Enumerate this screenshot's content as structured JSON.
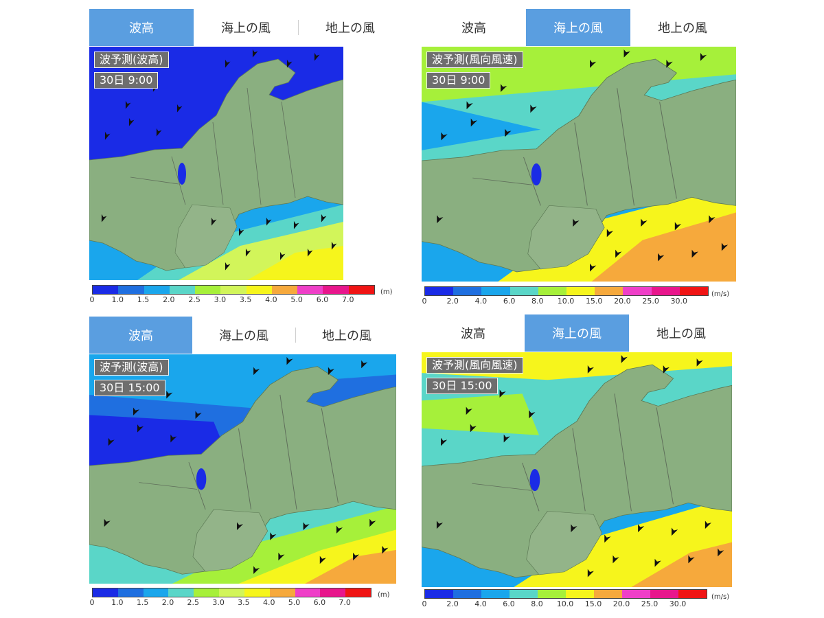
{
  "tabs": {
    "wave": "波高",
    "sea_wind": "海上の風",
    "land_wind": "地上の風"
  },
  "wave_legend": {
    "colors": [
      "#1a2be6",
      "#1f6fe0",
      "#1aa6ec",
      "#5ad6c8",
      "#a6f03a",
      "#d2f55a",
      "#f6f51c",
      "#f6a93c",
      "#ef3fc8",
      "#e8168c",
      "#f01414"
    ],
    "ticks": [
      "0",
      "1.0",
      "1.5",
      "2.0",
      "2.5",
      "3.0",
      "3.5",
      "4.0",
      "5.0",
      "6.0",
      "7.0"
    ],
    "unit": "(m)"
  },
  "wind_legend": {
    "colors": [
      "#1a2be6",
      "#1f6fe0",
      "#1aa6ec",
      "#5ad6c8",
      "#a6f03a",
      "#f6f51c",
      "#f6a93c",
      "#ef3fc8",
      "#e8168c",
      "#f01414"
    ],
    "ticks": [
      "0",
      "2.0",
      "4.0",
      "6.0",
      "8.0",
      "10.0",
      "15.0",
      "20.0",
      "25.0",
      "30.0"
    ],
    "unit": "(m/s)"
  },
  "panels": [
    {
      "active_tab": "wave",
      "title": "波予測(波高)",
      "time": "30日 9:00"
    },
    {
      "active_tab": "sea_wind",
      "title": "波予測(風向風速)",
      "time": "30日 9:00"
    },
    {
      "active_tab": "wave",
      "title": "波予測(波高)",
      "time": "30日 15:00"
    },
    {
      "active_tab": "sea_wind",
      "title": "波予測(風向風速)",
      "time": "30日 15:00"
    }
  ],
  "colors": {
    "active_tab": "#5a9ee0",
    "land": "#8aaf80"
  }
}
